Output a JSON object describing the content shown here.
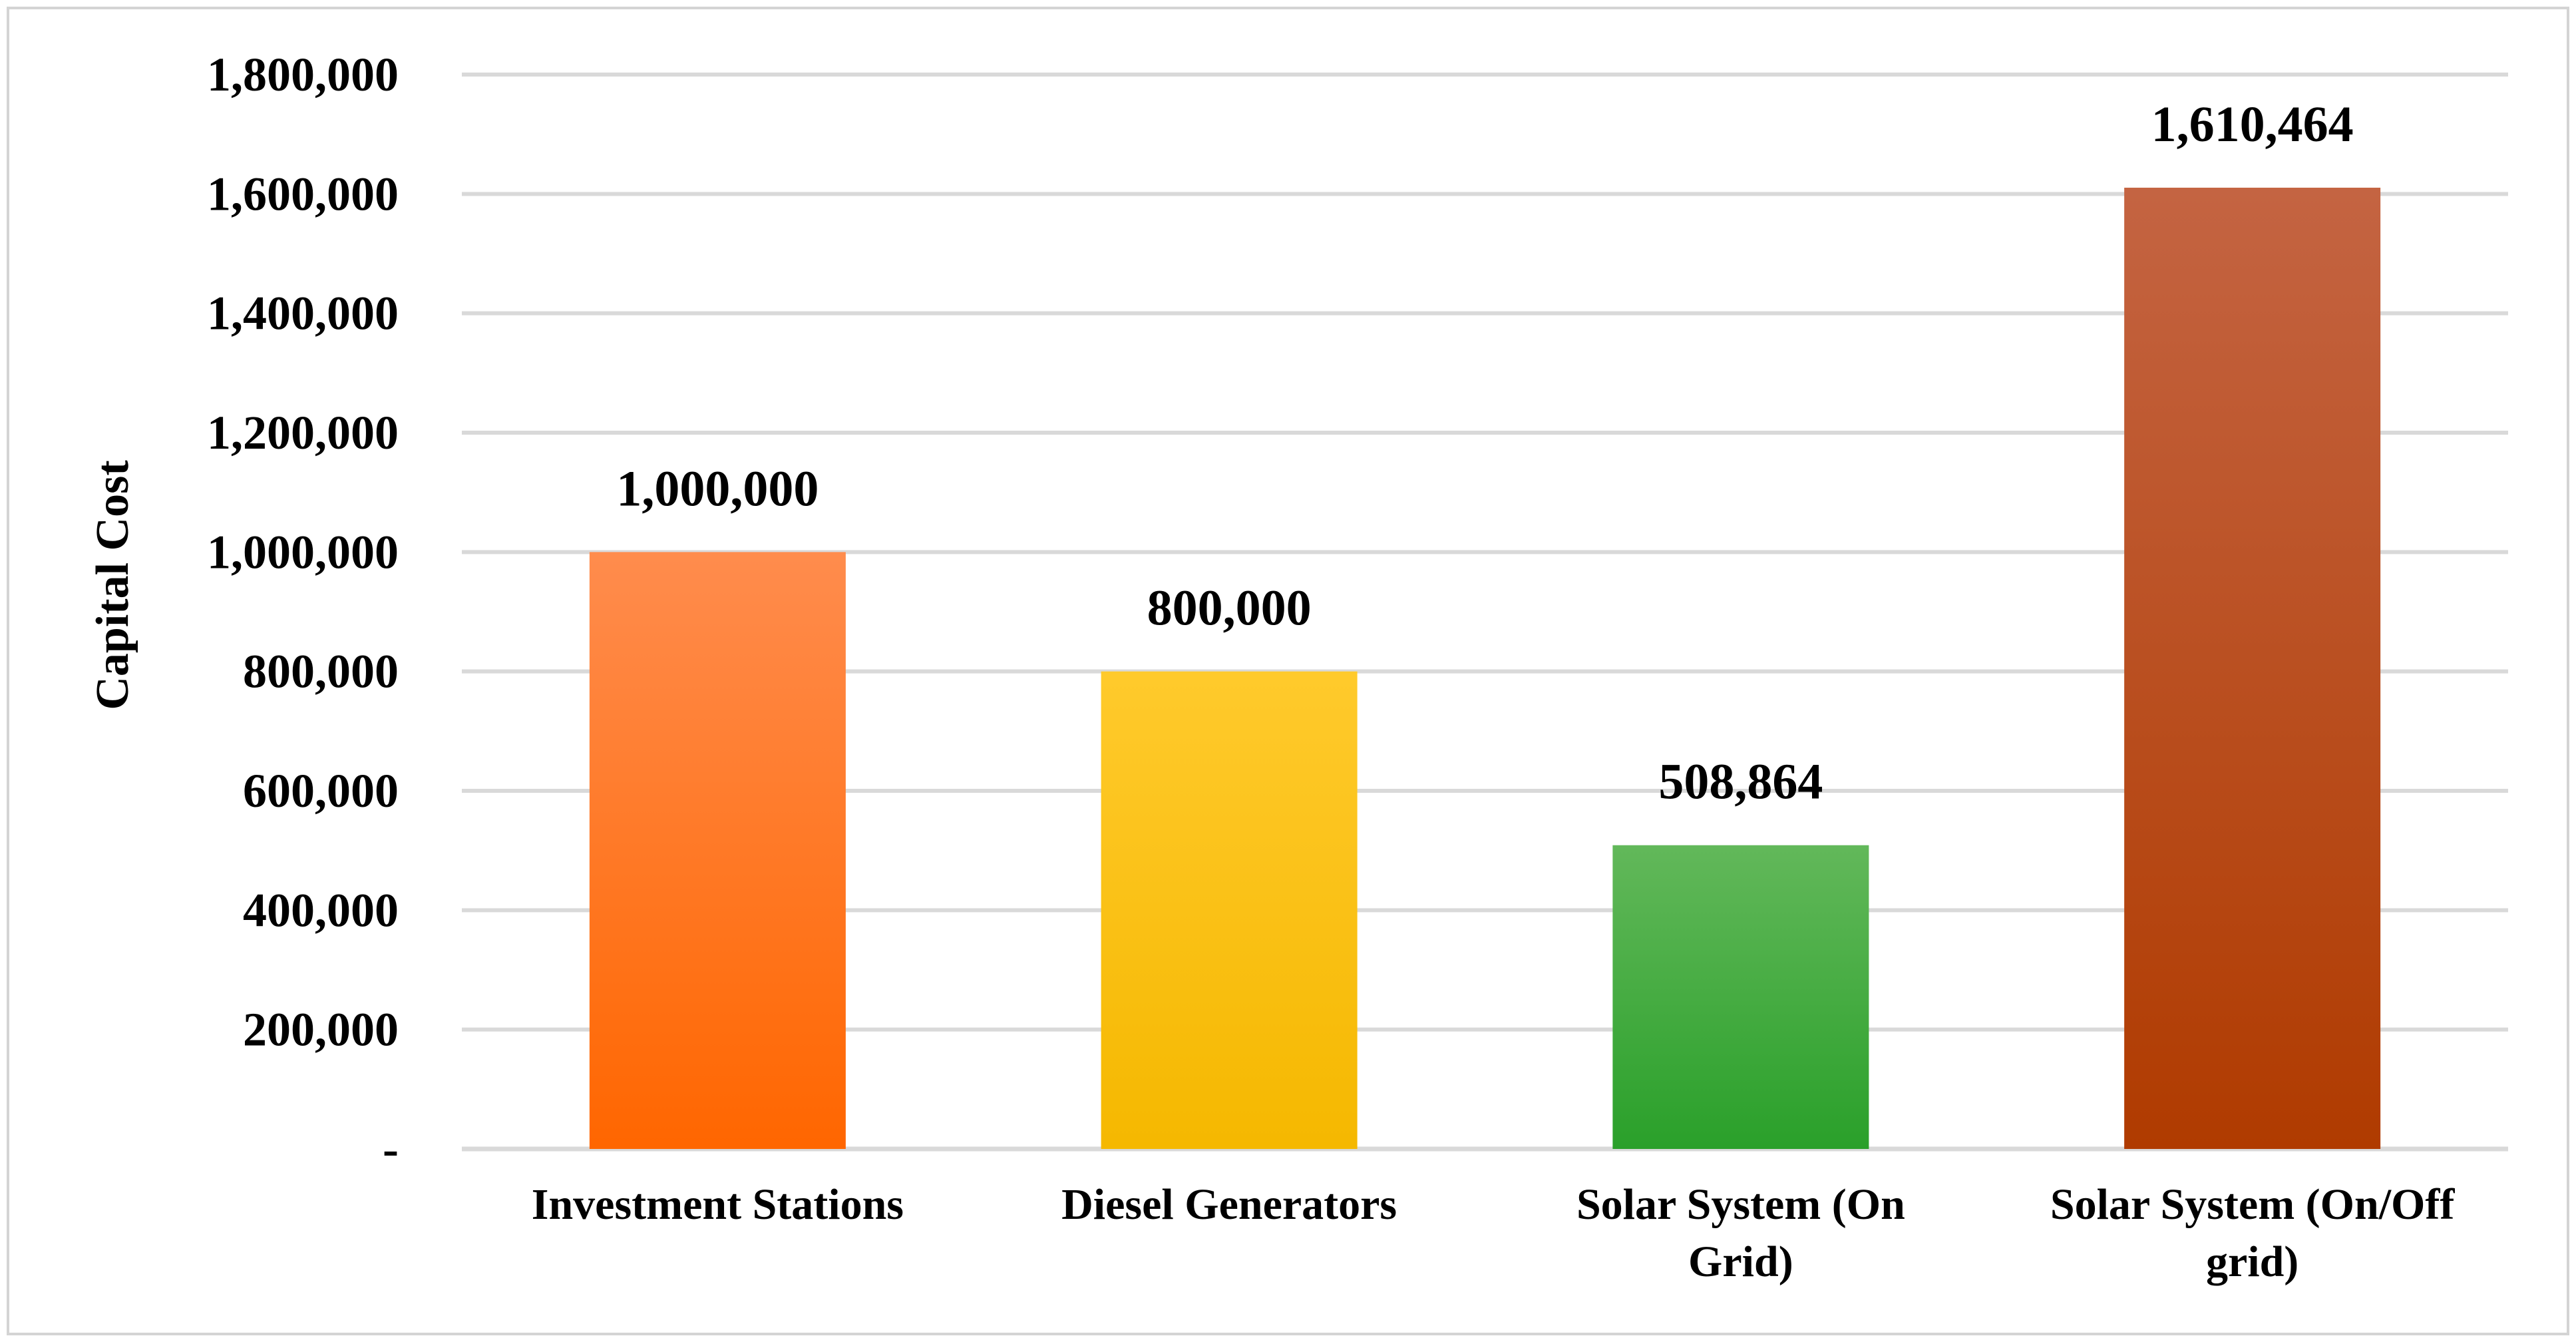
{
  "chart_data": {
    "type": "bar",
    "title": "",
    "xlabel": "",
    "ylabel": "Capital Cost",
    "categories": [
      [
        "Investment Stations"
      ],
      [
        "Diesel Generators"
      ],
      [
        "Solar System (On",
        "Grid)"
      ],
      [
        "Solar System (On/Off",
        "grid)"
      ]
    ],
    "values": [
      1000000,
      800000,
      508864,
      1610464
    ],
    "data_labels": [
      "1,000,000",
      "800,000",
      "508,864",
      "1,610,464"
    ],
    "ylim": [
      0,
      1800000
    ],
    "y_ticks": [
      {
        "value": 0,
        "label": "-"
      },
      {
        "value": 200000,
        "label": "200,000"
      },
      {
        "value": 400000,
        "label": "400,000"
      },
      {
        "value": 600000,
        "label": "600,000"
      },
      {
        "value": 800000,
        "label": "800,000"
      },
      {
        "value": 1000000,
        "label": "1,000,000"
      },
      {
        "value": 1200000,
        "label": "1,200,000"
      },
      {
        "value": 1400000,
        "label": "1,400,000"
      },
      {
        "value": 1600000,
        "label": "1,600,000"
      },
      {
        "value": 1800000,
        "label": "1,800,000"
      }
    ],
    "grid": true,
    "legend": "none",
    "colors": [
      {
        "top": "#ff8c4d",
        "bottom": "#ff6600"
      },
      {
        "top": "#ffca2c",
        "bottom": "#f5b800"
      },
      {
        "top": "#62b85a",
        "bottom": "#2aa02a"
      },
      {
        "top": "#c46442",
        "bottom": "#b03b00"
      }
    ]
  }
}
